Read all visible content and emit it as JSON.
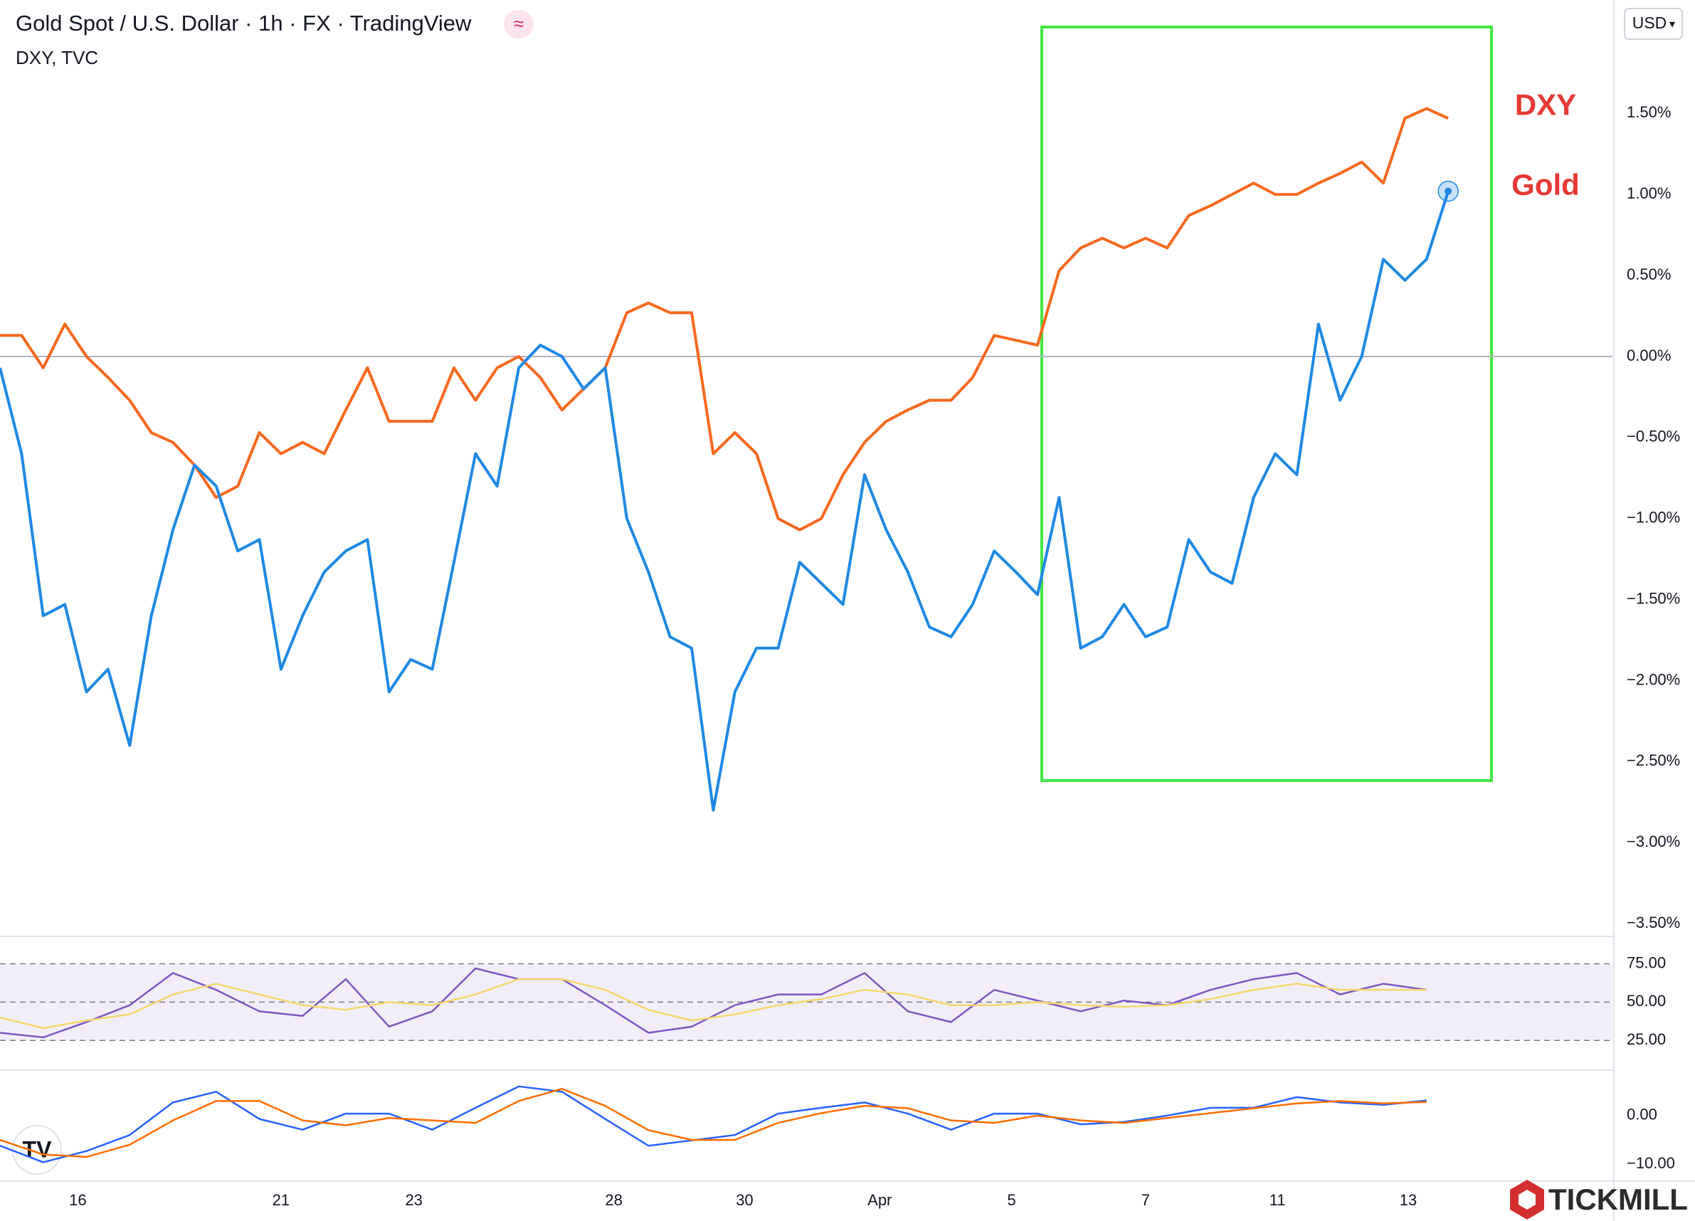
{
  "header": {
    "title": "Gold Spot / U.S. Dollar · 1h · FX · TradingView",
    "subtitle": "DXY, TVC",
    "currency": "USD",
    "brand": "TICKMILL"
  },
  "chart_data": [
    {
      "type": "line",
      "xlim": [
        0,
        74.6
      ],
      "xticks": [
        {
          "value": 3.6,
          "label": "16"
        },
        {
          "value": 13,
          "label": "21"
        },
        {
          "value": 19.15,
          "label": "23"
        },
        {
          "value": 28.4,
          "label": "28"
        },
        {
          "value": 34.45,
          "label": "30"
        },
        {
          "value": 40.7,
          "label": "Apr"
        },
        {
          "value": 46.8,
          "label": "5"
        },
        {
          "value": 53,
          "label": "7"
        },
        {
          "value": 59.1,
          "label": "11"
        },
        {
          "value": 65.15,
          "label": "13"
        }
      ],
      "ylim": [
        -3.57,
        2.2
      ],
      "yticks": [
        {
          "value": 1.5,
          "label": "1.50%"
        },
        {
          "value": 1,
          "label": "1.00%"
        },
        {
          "value": 0.5,
          "label": "0.50%"
        },
        {
          "value": 0,
          "label": "0.00%"
        },
        {
          "value": -0.5,
          "label": "−0.50%"
        },
        {
          "value": -1,
          "label": "−1.00%"
        },
        {
          "value": -1.5,
          "label": "−1.50%"
        },
        {
          "value": -2,
          "label": "−2.00%"
        },
        {
          "value": -2.5,
          "label": "−2.50%"
        },
        {
          "value": -3,
          "label": "−3.00%"
        },
        {
          "value": -3.5,
          "label": "−3.50%"
        }
      ],
      "zero_line": true,
      "series": [
        {
          "name": "DXY",
          "color": "#f7681f",
          "label_color": "#e53935",
          "values": [
            0.13,
            0.13,
            -0.07,
            0.2,
            0.0,
            -0.13,
            -0.27,
            -0.47,
            -0.53,
            -0.67,
            -0.87,
            -0.8,
            -0.47,
            -0.6,
            -0.53,
            -0.6,
            -0.33,
            -0.07,
            -0.4,
            -0.4,
            -0.4,
            -0.07,
            -0.27,
            -0.07,
            0.0,
            -0.13,
            -0.33,
            -0.2,
            -0.07,
            0.27,
            0.33,
            0.27,
            0.27,
            -0.6,
            -0.47,
            -0.6,
            -1.0,
            -1.07,
            -1.0,
            -0.73,
            -0.53,
            -0.4,
            -0.33,
            -0.27,
            -0.27,
            -0.13,
            0.13,
            0.1,
            0.07,
            0.53,
            0.67,
            0.73,
            0.67,
            0.73,
            0.67,
            0.87,
            0.93,
            1.0,
            1.07,
            1.0,
            1.0,
            1.07,
            1.13,
            1.2,
            1.07,
            1.47,
            1.53,
            1.47
          ]
        },
        {
          "name": "Gold",
          "color": "#1e88e5",
          "label_color": "#e53935",
          "values": [
            -0.07,
            -0.6,
            -1.6,
            -1.53,
            -2.07,
            -1.93,
            -2.4,
            -1.6,
            -1.07,
            -0.67,
            -0.8,
            -1.2,
            -1.13,
            -1.93,
            -1.6,
            -1.33,
            -1.2,
            -1.13,
            -2.07,
            -1.87,
            -1.93,
            -1.27,
            -0.6,
            -0.8,
            -0.07,
            0.07,
            0.0,
            -0.2,
            -0.07,
            -1.0,
            -1.33,
            -1.73,
            -1.8,
            -2.8,
            -2.07,
            -1.8,
            -1.8,
            -1.27,
            -1.4,
            -1.53,
            -0.73,
            -1.07,
            -1.33,
            -1.67,
            -1.73,
            -1.53,
            -1.2,
            -1.33,
            -1.47,
            -0.87,
            -1.8,
            -1.73,
            -1.53,
            -1.73,
            -1.67,
            -1.13,
            -1.33,
            -1.4,
            -0.87,
            -0.6,
            -0.73,
            0.2,
            -0.27,
            0.0,
            0.6,
            0.47,
            0.6,
            1.02
          ]
        }
      ]
    },
    {
      "type": "line",
      "xlim": [
        0,
        37.3
      ],
      "ylim": [
        7,
        91.5
      ],
      "yticks": [
        {
          "value": 75,
          "label": "75.00"
        },
        {
          "value": 50,
          "label": "50.00"
        },
        {
          "value": 25,
          "label": "25.00"
        }
      ],
      "band": [
        25,
        75
      ],
      "grid": true,
      "series": [
        {
          "color": "#7e57c2",
          "values": [
            30,
            27,
            37,
            48,
            69,
            58,
            44,
            41,
            65,
            34,
            44,
            72,
            65,
            65,
            48,
            30,
            34,
            48,
            55,
            55,
            69,
            44,
            37,
            58,
            51,
            44,
            51,
            48,
            58,
            65,
            69,
            55,
            62,
            58
          ]
        },
        {
          "color": "#f5d76e",
          "values": [
            40,
            33,
            38,
            42,
            55,
            62,
            55,
            48,
            45,
            50,
            48,
            55,
            65,
            65,
            58,
            45,
            38,
            42,
            48,
            52,
            58,
            55,
            48,
            48,
            50,
            48,
            47,
            48,
            52,
            58,
            62,
            58,
            58,
            58
          ]
        }
      ]
    },
    {
      "type": "line",
      "xlim": [
        0,
        37.3
      ],
      "ylim": [
        -12.9,
        8.9
      ],
      "yticks": [
        {
          "value": 0,
          "label": "0.00"
        },
        {
          "value": -10,
          "label": "−10.00"
        }
      ],
      "series": [
        {
          "color": "#2962ff",
          "values": [
            -6.2,
            -9.6,
            -7.3,
            -4,
            2.7,
            4.9,
            -0.7,
            -2.9,
            0.4,
            0.4,
            -2.9,
            1.6,
            6,
            4.9,
            -0.7,
            -6.2,
            -5.1,
            -4,
            0.4,
            1.6,
            2.7,
            0.4,
            -2.9,
            0.4,
            0.4,
            -1.8,
            -1.3,
            0,
            1.6,
            1.6,
            3.8,
            2.7,
            2.2,
            3.1
          ]
        },
        {
          "color": "#ff6d00",
          "values": [
            -5,
            -8,
            -8.5,
            -6,
            -1,
            3,
            3,
            -1,
            -2,
            -0.5,
            -1,
            -1.5,
            3,
            5.5,
            2,
            -3,
            -5,
            -5,
            -1.5,
            0.5,
            2,
            1.5,
            -1,
            -1.5,
            0,
            -1,
            -1.5,
            -0.5,
            0.5,
            1.5,
            2.5,
            3,
            2.5,
            2.8
          ]
        }
      ]
    }
  ]
}
